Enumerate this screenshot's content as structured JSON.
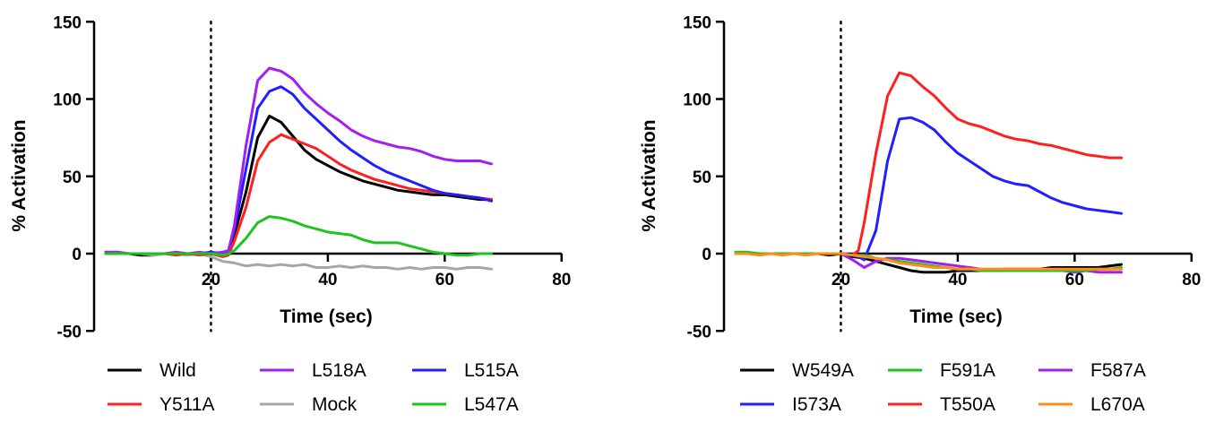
{
  "chart_data": [
    {
      "type": "line",
      "title": "",
      "xlabel": "Time (sec)",
      "ylabel": "% Activation",
      "xlim": [
        0,
        80
      ],
      "ylim": [
        -50,
        150
      ],
      "xticks": [
        20,
        40,
        60,
        80
      ],
      "yticks": [
        -50,
        0,
        50,
        100,
        150
      ],
      "xtick_labels": [
        "20",
        "40",
        "60",
        "80"
      ],
      "ytick_labels": [
        "-50",
        "0",
        "50",
        "100",
        "150"
      ],
      "reference_line": {
        "x": 20,
        "style": "dotted"
      },
      "grid": false,
      "legend_position": "bottom",
      "legend_order": [
        0,
        2,
        4,
        1,
        3,
        5
      ],
      "series": [
        {
          "name": "Wild",
          "color": "#000000",
          "x": [
            2,
            4,
            6,
            8,
            10,
            12,
            14,
            16,
            18,
            20,
            22,
            23,
            24,
            26,
            28,
            30,
            32,
            34,
            36,
            38,
            40,
            42,
            44,
            46,
            48,
            50,
            52,
            54,
            56,
            58,
            60,
            62,
            64,
            66,
            68
          ],
          "y": [
            0,
            0,
            0,
            -1,
            -1,
            0,
            0,
            0,
            0,
            1,
            -1,
            1,
            12,
            40,
            75,
            89,
            85,
            76,
            67,
            61,
            57,
            53,
            50,
            47,
            45,
            43,
            41,
            40,
            39,
            38,
            38,
            37,
            36,
            35,
            35
          ]
        },
        {
          "name": "Mock",
          "color": "#a6a6a6",
          "x": [
            2,
            4,
            6,
            8,
            10,
            12,
            14,
            16,
            18,
            20,
            22,
            24,
            26,
            28,
            30,
            32,
            34,
            36,
            38,
            40,
            42,
            44,
            46,
            48,
            50,
            52,
            54,
            56,
            58,
            60,
            62,
            64,
            66,
            68
          ],
          "y": [
            0,
            0,
            0,
            0,
            -1,
            0,
            0,
            -1,
            0,
            -2,
            -5,
            -6,
            -8,
            -7,
            -8,
            -7,
            -8,
            -7,
            -9,
            -9,
            -8,
            -9,
            -8,
            -9,
            -9,
            -10,
            -9,
            -10,
            -9,
            -9,
            -10,
            -9,
            -9,
            -10
          ]
        },
        {
          "name": "Y511A",
          "color": "#ff1f1f",
          "x": [
            2,
            4,
            6,
            8,
            10,
            12,
            14,
            16,
            18,
            20,
            22,
            23,
            24,
            26,
            28,
            30,
            32,
            34,
            36,
            38,
            40,
            42,
            44,
            46,
            48,
            50,
            52,
            54,
            56,
            58,
            60,
            62,
            64,
            66,
            68
          ],
          "y": [
            0,
            1,
            0,
            0,
            0,
            0,
            -1,
            0,
            -1,
            0,
            -2,
            -1,
            8,
            30,
            60,
            72,
            77,
            74,
            71,
            68,
            63,
            58,
            54,
            51,
            48,
            46,
            44,
            42,
            41,
            40,
            39,
            38,
            37,
            36,
            35
          ]
        },
        {
          "name": "L515A",
          "color": "#1f1fff",
          "x": [
            2,
            4,
            6,
            8,
            10,
            12,
            14,
            16,
            18,
            20,
            22,
            23,
            24,
            26,
            28,
            30,
            32,
            34,
            36,
            38,
            40,
            42,
            44,
            46,
            48,
            50,
            52,
            54,
            56,
            58,
            60,
            62,
            64,
            66,
            68
          ],
          "y": [
            1,
            0,
            0,
            0,
            0,
            0,
            0,
            0,
            0,
            1,
            0,
            2,
            15,
            55,
            94,
            105,
            108,
            103,
            94,
            87,
            80,
            73,
            67,
            62,
            57,
            53,
            50,
            47,
            44,
            41,
            39,
            38,
            37,
            36,
            34
          ]
        },
        {
          "name": "L518A",
          "color": "#a020f0",
          "x": [
            2,
            4,
            6,
            8,
            10,
            12,
            14,
            16,
            18,
            20,
            22,
            23,
            24,
            26,
            28,
            30,
            32,
            34,
            36,
            38,
            40,
            42,
            44,
            46,
            48,
            50,
            52,
            54,
            56,
            58,
            60,
            62,
            64,
            66,
            68
          ],
          "y": [
            1,
            1,
            0,
            0,
            0,
            0,
            1,
            0,
            1,
            0,
            1,
            2,
            18,
            70,
            112,
            120,
            118,
            113,
            104,
            97,
            91,
            86,
            80,
            76,
            73,
            71,
            69,
            68,
            66,
            63,
            61,
            60,
            60,
            60,
            58
          ]
        },
        {
          "name": "L547A",
          "color": "#1ec31e",
          "x": [
            2,
            4,
            6,
            8,
            10,
            12,
            14,
            16,
            18,
            20,
            22,
            23,
            24,
            26,
            28,
            30,
            32,
            34,
            36,
            38,
            40,
            42,
            44,
            46,
            48,
            50,
            52,
            54,
            56,
            58,
            60,
            62,
            64,
            66,
            68
          ],
          "y": [
            0,
            0,
            0,
            0,
            0,
            0,
            0,
            0,
            0,
            0,
            -1,
            0,
            2,
            10,
            20,
            24,
            23,
            21,
            18,
            16,
            14,
            13,
            12,
            9,
            7,
            7,
            7,
            5,
            3,
            1,
            0,
            -1,
            -1,
            0,
            0
          ]
        }
      ]
    },
    {
      "type": "line",
      "title": "",
      "xlabel": "Time (sec)",
      "ylabel": "% Activation",
      "xlim": [
        0,
        80
      ],
      "ylim": [
        -50,
        150
      ],
      "xticks": [
        20,
        40,
        60,
        80
      ],
      "yticks": [
        -50,
        0,
        50,
        100,
        150
      ],
      "xtick_labels": [
        "20",
        "40",
        "60",
        "80"
      ],
      "ytick_labels": [
        "-50",
        "0",
        "50",
        "100",
        "150"
      ],
      "reference_line": {
        "x": 20,
        "style": "dotted"
      },
      "grid": false,
      "legend_position": "bottom",
      "legend_order": [
        0,
        2,
        4,
        1,
        3,
        5
      ],
      "series": [
        {
          "name": "W549A",
          "color": "#000000",
          "x": [
            2,
            4,
            6,
            8,
            10,
            12,
            14,
            16,
            18,
            20,
            22,
            24,
            26,
            28,
            30,
            32,
            34,
            36,
            38,
            40,
            42,
            44,
            46,
            48,
            50,
            52,
            54,
            56,
            58,
            60,
            62,
            64,
            66,
            68
          ],
          "y": [
            0,
            0,
            0,
            0,
            0,
            0,
            0,
            0,
            -1,
            0,
            -2,
            -3,
            -5,
            -7,
            -9,
            -11,
            -12,
            -12,
            -12,
            -11,
            -11,
            -11,
            -11,
            -10,
            -10,
            -10,
            -10,
            -9,
            -9,
            -9,
            -9,
            -9,
            -8,
            -7
          ]
        },
        {
          "name": "T550A",
          "color": "#ff1f1f",
          "x": [
            2,
            4,
            6,
            8,
            10,
            12,
            14,
            16,
            18,
            20,
            22,
            23,
            24,
            26,
            28,
            30,
            32,
            34,
            36,
            38,
            40,
            42,
            44,
            46,
            48,
            50,
            52,
            54,
            56,
            58,
            60,
            62,
            64,
            66,
            68
          ],
          "y": [
            0,
            0,
            0,
            0,
            0,
            0,
            0,
            0,
            0,
            0,
            -1,
            2,
            20,
            65,
            102,
            117,
            115,
            108,
            102,
            94,
            87,
            84,
            82,
            79,
            76,
            74,
            73,
            71,
            70,
            68,
            66,
            64,
            63,
            62,
            62
          ]
        },
        {
          "name": "I573A",
          "color": "#1f1fff",
          "x": [
            2,
            4,
            6,
            8,
            10,
            12,
            14,
            16,
            18,
            20,
            22,
            23,
            24,
            26,
            28,
            30,
            32,
            34,
            36,
            38,
            40,
            42,
            44,
            46,
            48,
            50,
            52,
            54,
            56,
            58,
            60,
            62,
            64,
            66,
            68
          ],
          "y": [
            0,
            0,
            0,
            0,
            0,
            0,
            0,
            0,
            0,
            0,
            -1,
            -2,
            -4,
            15,
            60,
            87,
            88,
            85,
            80,
            72,
            65,
            60,
            55,
            50,
            47,
            45,
            44,
            40,
            36,
            33,
            31,
            29,
            28,
            27,
            26
          ]
        },
        {
          "name": "F587A",
          "color": "#a020f0",
          "x": [
            2,
            4,
            6,
            8,
            10,
            12,
            14,
            16,
            18,
            20,
            22,
            24,
            26,
            28,
            30,
            32,
            34,
            36,
            38,
            40,
            42,
            44,
            46,
            48,
            50,
            52,
            54,
            56,
            58,
            60,
            62,
            64,
            66,
            68
          ],
          "y": [
            0,
            0,
            0,
            0,
            0,
            0,
            0,
            0,
            0,
            0,
            -4,
            -9,
            -5,
            -3,
            -3,
            -4,
            -5,
            -6,
            -7,
            -8,
            -9,
            -10,
            -11,
            -11,
            -11,
            -11,
            -11,
            -11,
            -11,
            -12,
            -11,
            -12,
            -12,
            -12
          ]
        },
        {
          "name": "F591A",
          "color": "#1ec31e",
          "x": [
            2,
            4,
            6,
            8,
            10,
            12,
            14,
            16,
            18,
            20,
            22,
            24,
            26,
            28,
            30,
            32,
            34,
            36,
            38,
            40,
            42,
            44,
            46,
            48,
            50,
            52,
            54,
            56,
            58,
            60,
            62,
            64,
            66,
            68
          ],
          "y": [
            1,
            1,
            0,
            0,
            0,
            0,
            0,
            0,
            0,
            0,
            -1,
            -1,
            -3,
            -4,
            -5,
            -6,
            -7,
            -8,
            -9,
            -10,
            -10,
            -11,
            -11,
            -11,
            -11,
            -11,
            -11,
            -11,
            -11,
            -11,
            -11,
            -10,
            -10,
            -9
          ]
        },
        {
          "name": "L670A",
          "color": "#ff8c1a",
          "x": [
            2,
            4,
            6,
            8,
            10,
            12,
            14,
            16,
            18,
            20,
            22,
            24,
            26,
            28,
            30,
            32,
            34,
            36,
            38,
            40,
            42,
            44,
            46,
            48,
            50,
            52,
            54,
            56,
            58,
            60,
            62,
            64,
            66,
            68
          ],
          "y": [
            0,
            0,
            -1,
            0,
            -1,
            0,
            -1,
            0,
            0,
            0,
            -1,
            -2,
            -3,
            -4,
            -6,
            -7,
            -8,
            -9,
            -9,
            -10,
            -10,
            -10,
            -10,
            -10,
            -10,
            -10,
            -10,
            -10,
            -10,
            -10,
            -10,
            -10,
            -10,
            -10
          ]
        }
      ]
    }
  ]
}
